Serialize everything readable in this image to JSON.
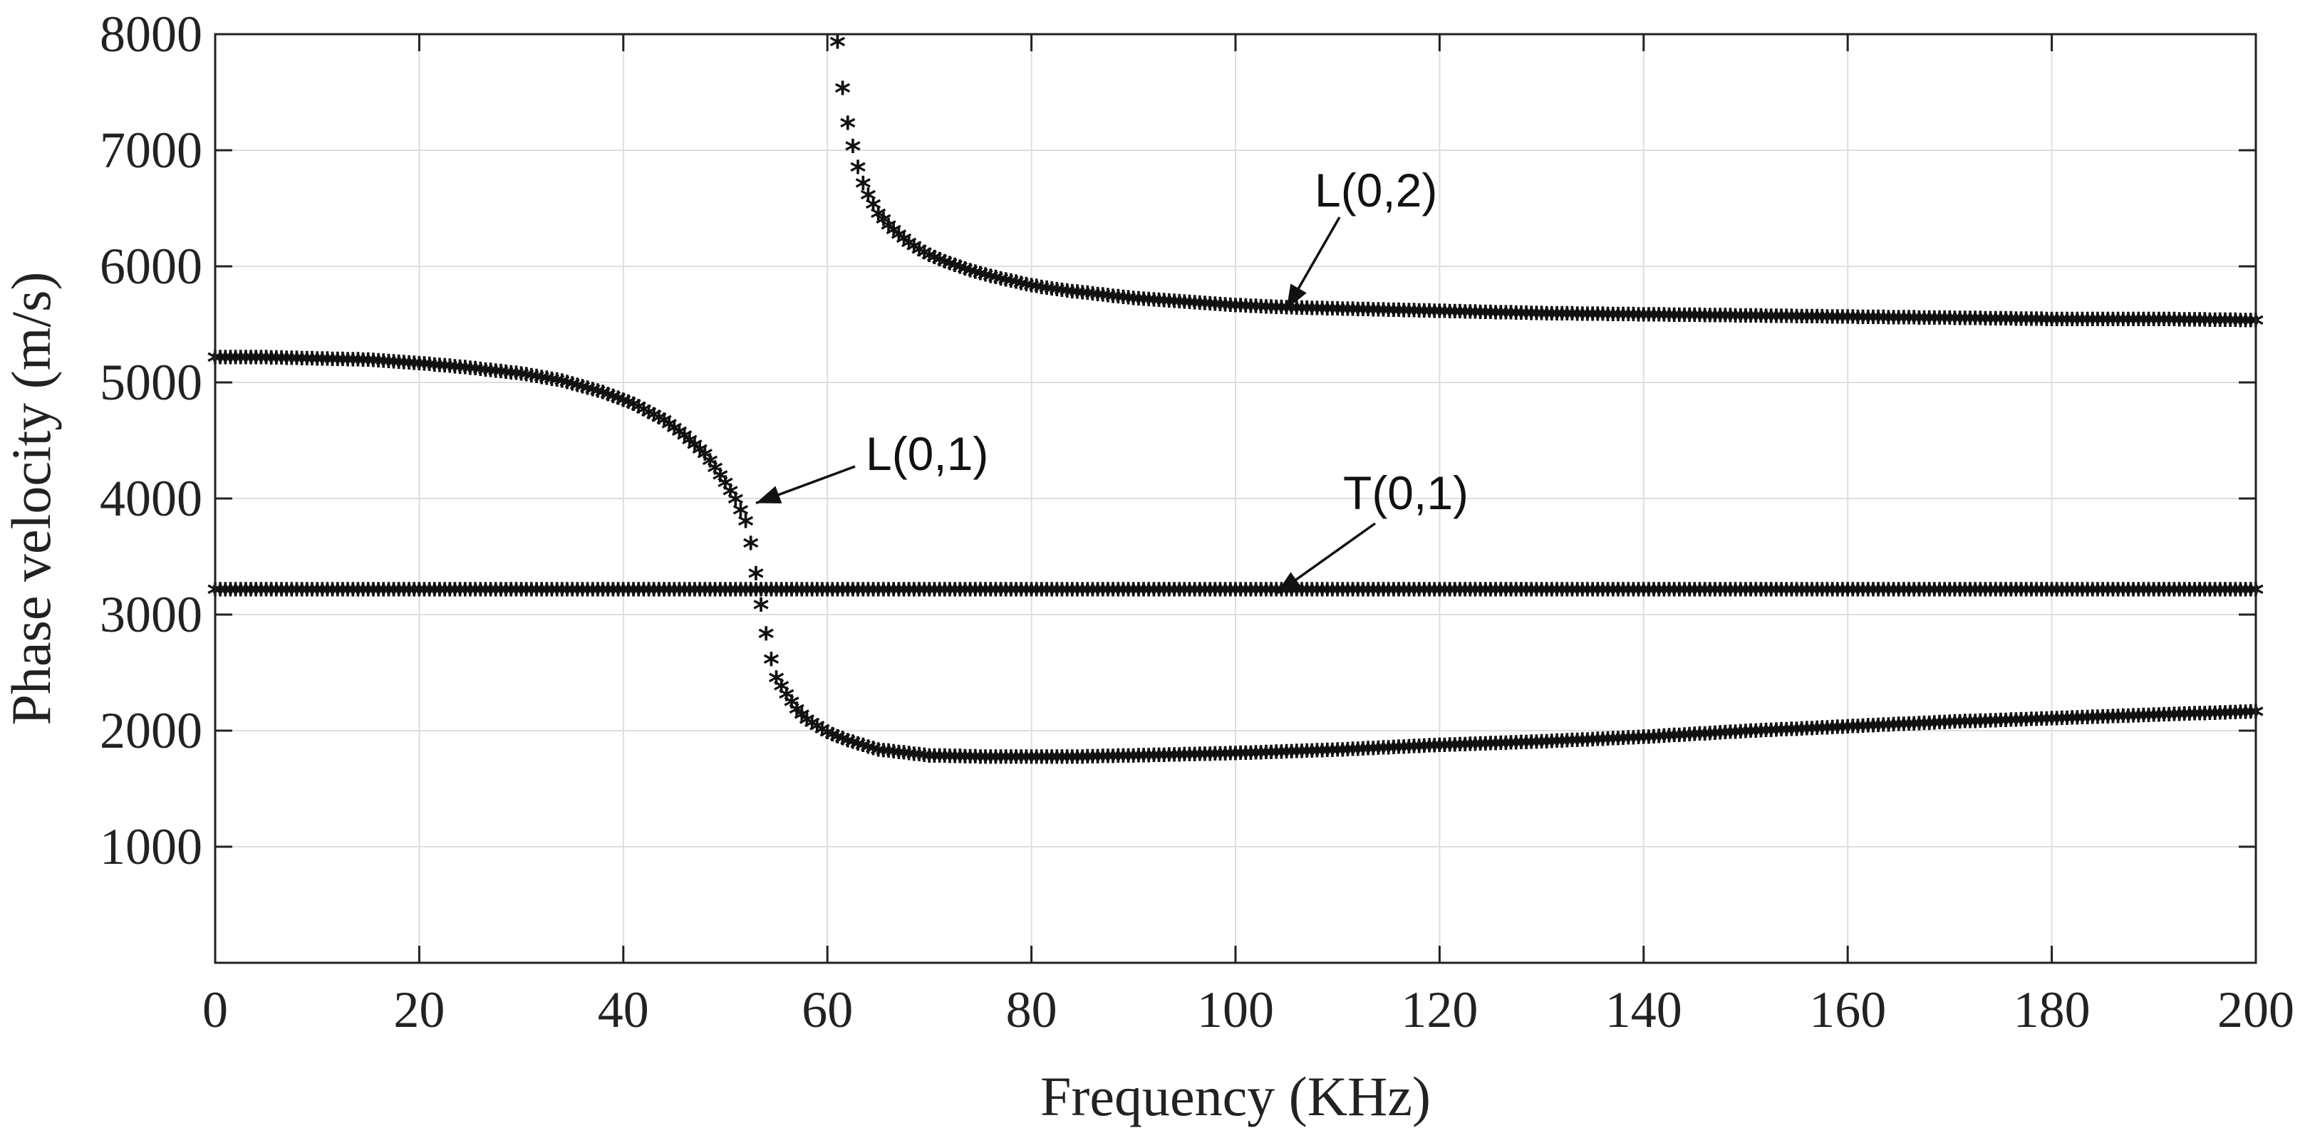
{
  "chart_data": {
    "type": "scatter",
    "title": "",
    "xlabel": "Frequency (KHz)",
    "ylabel": "Phase velocity (m/s)",
    "xlim": [
      0,
      200
    ],
    "ylim": [
      0,
      8000
    ],
    "grid": true,
    "marker": "*",
    "x_ticks": [
      0,
      20,
      40,
      60,
      80,
      100,
      120,
      140,
      160,
      180,
      200
    ],
    "x_tick_labels": [
      "0",
      "20",
      "40",
      "60",
      "80",
      "100",
      "120",
      "140",
      "160",
      "180",
      "200"
    ],
    "y_ticks": [
      1000,
      2000,
      3000,
      4000,
      5000,
      6000,
      7000,
      8000
    ],
    "y_tick_labels": [
      "1000",
      "2000",
      "3000",
      "4000",
      "5000",
      "6000",
      "7000",
      "8000"
    ],
    "series": [
      {
        "name": "L(0,1)",
        "x": [
          0,
          5,
          10,
          15,
          20,
          25,
          30,
          34,
          38,
          41,
          44,
          46,
          48,
          49,
          50,
          51,
          52,
          52.5,
          53,
          53.5,
          54,
          54.5,
          55,
          56,
          57,
          58,
          60,
          62,
          65,
          70,
          75,
          80,
          85,
          90,
          95,
          100,
          110,
          120,
          130,
          140,
          150,
          160,
          170,
          180,
          190,
          200
        ],
        "y": [
          5180,
          5180,
          5170,
          5160,
          5130,
          5090,
          5040,
          4980,
          4880,
          4780,
          4640,
          4510,
          4350,
          4230,
          4100,
          3960,
          3770,
          3580,
          3320,
          3050,
          2800,
          2580,
          2420,
          2280,
          2150,
          2060,
          1950,
          1880,
          1800,
          1750,
          1740,
          1740,
          1740,
          1750,
          1760,
          1770,
          1800,
          1840,
          1870,
          1910,
          1960,
          2000,
          2040,
          2070,
          2100,
          2130
        ]
      },
      {
        "name": "L(0,2)",
        "x": [
          61,
          61.5,
          62,
          62.5,
          63,
          63.5,
          64,
          64.5,
          65,
          66,
          67,
          68,
          69,
          70,
          72,
          74,
          76,
          78,
          80,
          83,
          86,
          90,
          95,
          100,
          105,
          110,
          115,
          120,
          130,
          140,
          150,
          160,
          170,
          180,
          190,
          200
        ],
        "y": [
          7900,
          7500,
          7200,
          7000,
          6820,
          6680,
          6580,
          6500,
          6420,
          6320,
          6240,
          6170,
          6110,
          6060,
          5990,
          5930,
          5880,
          5840,
          5800,
          5760,
          5730,
          5690,
          5660,
          5630,
          5610,
          5600,
          5590,
          5580,
          5560,
          5550,
          5540,
          5530,
          5520,
          5510,
          5510,
          5500
        ]
      },
      {
        "name": "T(0,1)",
        "x": [
          0,
          200
        ],
        "y": [
          3180,
          3180
        ]
      }
    ],
    "annotations": [
      {
        "text": "L(0,2)",
        "arrow_to": [
          105,
          5630
        ]
      },
      {
        "text": "L(0,1)",
        "arrow_to": [
          53,
          3960
        ]
      },
      {
        "text": "T(0,1)",
        "arrow_to": [
          104,
          3180
        ]
      }
    ]
  }
}
